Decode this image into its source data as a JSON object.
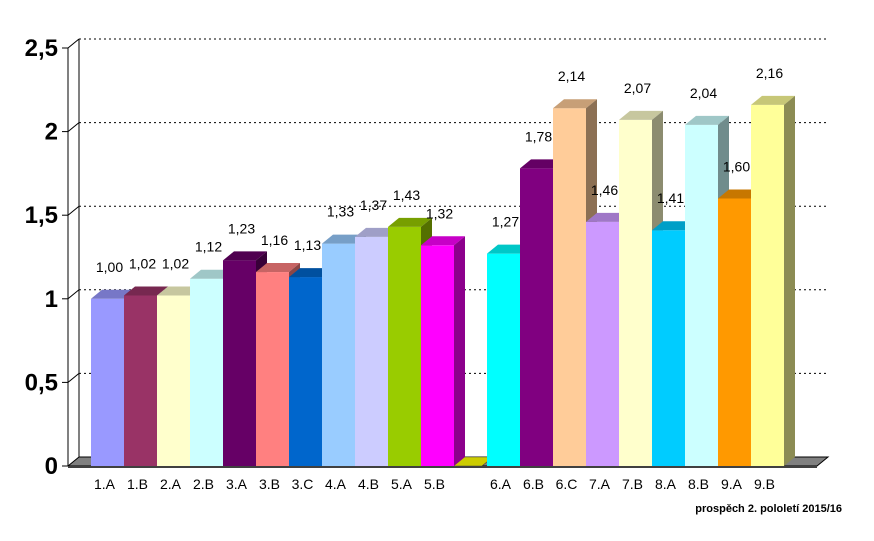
{
  "chart_data": {
    "type": "bar",
    "title": "",
    "xlabel": "",
    "ylabel": "",
    "ylim": [
      0,
      2.5
    ],
    "yticks": [
      "0",
      "0,5",
      "1",
      "1,5",
      "2",
      "2,5"
    ],
    "grid": true,
    "categories": [
      "1.A",
      "1.B",
      "2.A",
      "2.B",
      "3.A",
      "3.B",
      "3.C",
      "4.A",
      "4.B",
      "5.A",
      "5.B",
      "6.A",
      "6.B",
      "6.C",
      "7.A",
      "7.B",
      "8.A",
      "8.B",
      "9.A",
      "9.B"
    ],
    "values": [
      1.0,
      1.02,
      1.02,
      1.12,
      1.23,
      1.16,
      1.13,
      1.33,
      1.37,
      1.43,
      1.32,
      1.27,
      1.78,
      2.14,
      1.46,
      2.07,
      1.41,
      2.04,
      1.6,
      2.16
    ],
    "labels": [
      "1,00",
      "1,02",
      "1,02",
      "1,12",
      "1,23",
      "1,16",
      "1,13",
      "1,33",
      "1,37",
      "1,43",
      "1,32",
      "1,27",
      "1,78",
      "2,14",
      "1,46",
      "2,07",
      "1,41",
      "2,04",
      "1,60",
      "2,16"
    ],
    "colors": [
      "#9999ff",
      "#993366",
      "#ffffcc",
      "#ccffff",
      "#660066",
      "#ff8080",
      "#0066cc",
      "#99ccff",
      "#ccccff",
      "#99cc00",
      "#ff00ff",
      "#00ffff",
      "#800080",
      "#ffcc99",
      "#cc99ff",
      "#ffffcc",
      "#00ccff",
      "#ccffff",
      "#ff9900",
      "#ffff99"
    ]
  },
  "footnote": "prospěch 2. pololetí 2015/16"
}
